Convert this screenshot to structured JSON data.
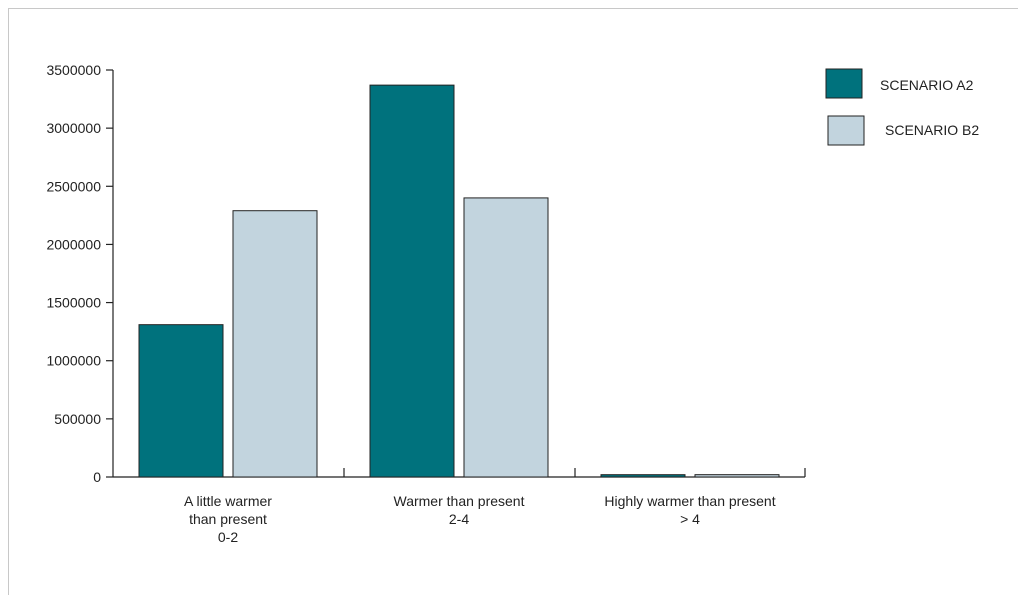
{
  "chart_data": {
    "type": "bar",
    "categories": [
      [
        "A little warmer",
        "than present",
        "0-2"
      ],
      [
        "Warmer than present",
        "2-4"
      ],
      [
        "Highly warmer than present",
        "> 4"
      ]
    ],
    "series": [
      {
        "name": "SCENARIO A2",
        "color": "#00727d",
        "values": [
          1310000,
          3370000,
          20000
        ]
      },
      {
        "name": "SCENARIO B2",
        "color": "#c2d4de",
        "values": [
          2290000,
          2400000,
          20000
        ]
      }
    ],
    "ylim": [
      0,
      3500000
    ],
    "yticks": [
      "0",
      "500000",
      "1000000",
      "1500000",
      "2000000",
      "2500000",
      "3000000",
      "3500000"
    ],
    "grid": false,
    "legend_position": "top-right",
    "title": "",
    "xlabel": "",
    "ylabel": ""
  }
}
